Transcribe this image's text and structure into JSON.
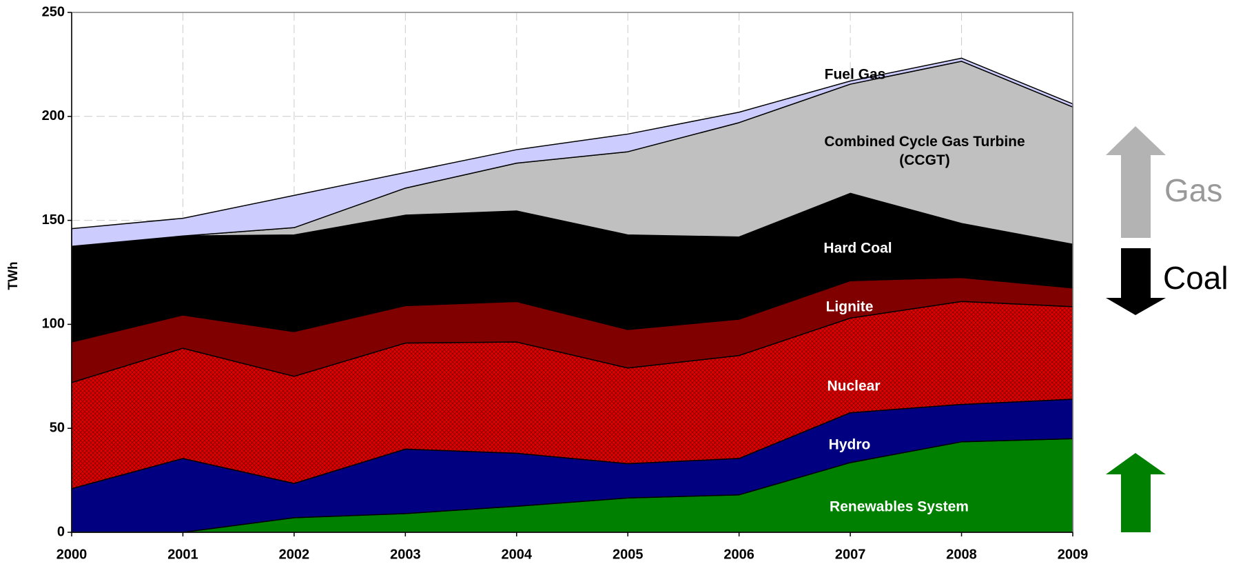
{
  "chart_data": {
    "type": "stacked_area",
    "y_label": "TWh",
    "categories": [
      "2000",
      "2001",
      "2002",
      "2003",
      "2004",
      "2005",
      "2006",
      "2007",
      "2008",
      "2009"
    ],
    "ylim": [
      0,
      250
    ],
    "yticks": [
      0,
      50,
      100,
      150,
      200,
      250
    ],
    "grid": true,
    "series": [
      {
        "name": "Renewables System",
        "color": "#008000",
        "label_color": "#ffffff",
        "values": [
          0,
          0,
          7,
          9,
          12.5,
          16.5,
          18,
          33.5,
          43.5,
          45
        ]
      },
      {
        "name": "Hydro",
        "color": "#000080",
        "label_color": "#ffffff",
        "values": [
          21,
          35.5,
          16.5,
          31,
          25.5,
          16.5,
          17.5,
          24,
          18,
          19
        ]
      },
      {
        "name": "Nuclear",
        "color": "#e00000",
        "label_color": "#ffffff",
        "values": [
          51,
          53,
          51.5,
          51,
          53.5,
          46,
          49.5,
          45.5,
          49.5,
          44.5
        ]
      },
      {
        "name": "Lignite",
        "color": "#800000",
        "label_color": "#ffffff",
        "values": [
          19.5,
          16,
          21.5,
          18,
          19.5,
          18.5,
          17.5,
          18,
          11.5,
          9
        ]
      },
      {
        "name": "Hard Coal",
        "color": "#000000",
        "label_color": "#ffffff",
        "values": [
          46,
          38,
          46.5,
          43.5,
          43.5,
          45.5,
          39.5,
          42,
          26,
          21
        ]
      },
      {
        "name": "Combined Cycle Gas Turbine (CCGT)",
        "color": "#c0c0c0",
        "label_color": "#000000",
        "values": [
          0,
          0,
          3.5,
          13,
          23,
          40,
          55,
          52.5,
          78,
          66
        ]
      },
      {
        "name": "Fuel Gas",
        "color": "#ccccff",
        "label_color": "#000000",
        "values": [
          8.5,
          8.5,
          15.5,
          7.5,
          6.5,
          8.5,
          5,
          1.5,
          1.5,
          1.5
        ]
      }
    ],
    "annotations": [
      "Gas",
      "Coal"
    ]
  }
}
